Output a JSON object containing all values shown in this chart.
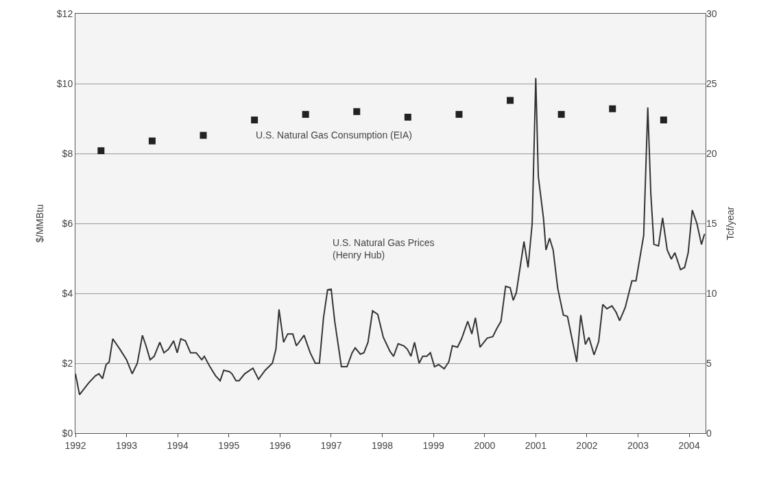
{
  "chart_data": {
    "type": "line",
    "ylabel": "$/MMBtu",
    "y2label": "Tcf/year",
    "xlim": [
      1992,
      2004.32
    ],
    "xticks": [
      1992,
      1993,
      1994,
      1995,
      1996,
      1997,
      1998,
      1999,
      2000,
      2001,
      2002,
      2003,
      2004
    ],
    "ylim": [
      0,
      12
    ],
    "yticks": [
      {
        "value": 0,
        "label": "$0"
      },
      {
        "value": 2,
        "label": "$2"
      },
      {
        "value": 4,
        "label": "$4"
      },
      {
        "value": 6,
        "label": "$6"
      },
      {
        "value": 8,
        "label": "$8"
      },
      {
        "value": 10,
        "label": "$10"
      },
      {
        "value": 12,
        "label": "$12"
      }
    ],
    "y2lim": [
      0,
      30
    ],
    "y2ticks": [
      0,
      5,
      10,
      15,
      20,
      25,
      30
    ],
    "grid": "y",
    "series": [
      {
        "name": "U.S. Natural Gas Consumption (EIA)",
        "type": "scatter",
        "axis": "y2",
        "marker": "square",
        "color": "#222222",
        "x": [
          1992.5,
          1993.5,
          1994.5,
          1995.5,
          1996.5,
          1997.5,
          1998.5,
          1999.5,
          2000.5,
          2001.5,
          2002.5,
          2003.5
        ],
        "values": [
          20.2,
          20.9,
          21.3,
          22.4,
          22.8,
          23.0,
          22.6,
          22.8,
          23.8,
          22.8,
          23.2,
          22.4
        ]
      },
      {
        "name": "U.S. Natural Gas Prices\n(Henry Hub)",
        "marker": "none",
        "line_style": "solid",
        "color": "#333333",
        "x": [
          1992.0,
          1992.08,
          1992.26,
          1992.39,
          1992.46,
          1992.53,
          1992.6,
          1992.66,
          1992.73,
          1992.87,
          1993.0,
          1993.11,
          1993.21,
          1993.31,
          1993.38,
          1993.46,
          1993.54,
          1993.65,
          1993.73,
          1993.82,
          1993.92,
          1993.99,
          1994.06,
          1994.15,
          1994.25,
          1994.36,
          1994.47,
          1994.52,
          1994.63,
          1994.74,
          1994.83,
          1994.9,
          1995.01,
          1995.06,
          1995.14,
          1995.2,
          1995.31,
          1995.47,
          1995.58,
          1995.71,
          1995.85,
          1995.92,
          1995.98,
          1996.07,
          1996.15,
          1996.25,
          1996.32,
          1996.42,
          1996.47,
          1996.59,
          1996.69,
          1996.77,
          1996.85,
          1996.93,
          1997.0,
          1997.07,
          1997.2,
          1997.31,
          1997.41,
          1997.47,
          1997.57,
          1997.64,
          1997.72,
          1997.81,
          1997.91,
          1998.02,
          1998.15,
          1998.22,
          1998.31,
          1998.42,
          1998.49,
          1998.56,
          1998.63,
          1998.72,
          1998.79,
          1998.87,
          1998.94,
          1999.02,
          1999.1,
          1999.21,
          1999.3,
          1999.37,
          1999.47,
          1999.55,
          1999.67,
          1999.75,
          1999.82,
          1999.91,
          2000.05,
          2000.16,
          2000.24,
          2000.32,
          2000.41,
          2000.5,
          2000.56,
          2000.62,
          2000.77,
          2000.85,
          2000.93,
          2001.0,
          2001.05,
          2001.15,
          2001.2,
          2001.27,
          2001.34,
          2001.43,
          2001.54,
          2001.62,
          2001.8,
          2001.88,
          2001.97,
          2002.04,
          2002.14,
          2002.23,
          2002.31,
          2002.39,
          2002.49,
          2002.57,
          2002.64,
          2002.75,
          2002.88,
          2002.96,
          2003.11,
          2003.19,
          2003.25,
          2003.31,
          2003.4,
          2003.48,
          2003.57,
          2003.65,
          2003.72,
          2003.83,
          2003.91,
          2003.98,
          2004.06,
          2004.15,
          2004.24,
          2004.3
        ],
        "values": [
          1.7,
          1.1,
          1.44,
          1.64,
          1.7,
          1.56,
          1.96,
          2.04,
          2.7,
          2.4,
          2.1,
          1.7,
          2.0,
          2.8,
          2.5,
          2.1,
          2.2,
          2.6,
          2.3,
          2.4,
          2.64,
          2.3,
          2.7,
          2.64,
          2.3,
          2.3,
          2.1,
          2.2,
          1.9,
          1.64,
          1.5,
          1.8,
          1.76,
          1.7,
          1.5,
          1.5,
          1.7,
          1.86,
          1.54,
          1.8,
          2.0,
          2.4,
          3.54,
          2.6,
          2.84,
          2.84,
          2.5,
          2.7,
          2.8,
          2.3,
          2.0,
          2.0,
          3.3,
          4.1,
          4.12,
          3.2,
          1.9,
          1.9,
          2.3,
          2.44,
          2.26,
          2.3,
          2.6,
          3.5,
          3.4,
          2.74,
          2.34,
          2.2,
          2.56,
          2.5,
          2.4,
          2.2,
          2.6,
          2.0,
          2.2,
          2.2,
          2.3,
          1.9,
          1.96,
          1.84,
          2.04,
          2.5,
          2.46,
          2.7,
          3.2,
          2.84,
          3.3,
          2.46,
          2.72,
          2.76,
          3.0,
          3.2,
          4.2,
          4.16,
          3.8,
          4.02,
          5.48,
          4.74,
          6.0,
          10.16,
          7.34,
          6.16,
          5.24,
          5.58,
          5.24,
          4.14,
          3.38,
          3.34,
          2.04,
          3.38,
          2.54,
          2.74,
          2.24,
          2.62,
          3.68,
          3.56,
          3.64,
          3.46,
          3.22,
          3.6,
          4.36,
          4.36,
          5.66,
          9.32,
          6.84,
          5.4,
          5.36,
          6.16,
          5.24,
          4.98,
          5.16,
          4.68,
          4.74,
          5.16,
          6.38,
          6.0,
          5.4,
          5.7
        ]
      }
    ]
  }
}
